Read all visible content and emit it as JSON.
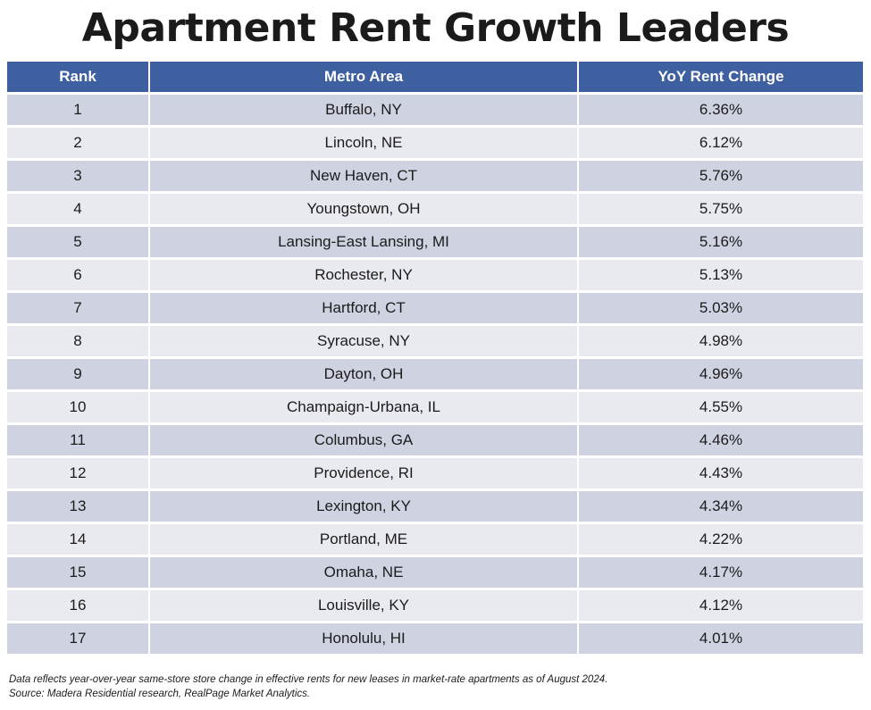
{
  "title": "Apartment Rent Growth Leaders",
  "table": {
    "headers": {
      "rank": "Rank",
      "metro": "Metro Area",
      "change": "YoY Rent Change"
    },
    "rows": [
      {
        "rank": "1",
        "metro": "Buffalo, NY",
        "change": "6.36%"
      },
      {
        "rank": "2",
        "metro": "Lincoln, NE",
        "change": "6.12%"
      },
      {
        "rank": "3",
        "metro": "New Haven, CT",
        "change": "5.76%"
      },
      {
        "rank": "4",
        "metro": "Youngstown, OH",
        "change": "5.75%"
      },
      {
        "rank": "5",
        "metro": "Lansing-East Lansing, MI",
        "change": "5.16%"
      },
      {
        "rank": "6",
        "metro": "Rochester, NY",
        "change": "5.13%"
      },
      {
        "rank": "7",
        "metro": "Hartford, CT",
        "change": "5.03%"
      },
      {
        "rank": "8",
        "metro": "Syracuse, NY",
        "change": "4.98%"
      },
      {
        "rank": "9",
        "metro": "Dayton, OH",
        "change": "4.96%"
      },
      {
        "rank": "10",
        "metro": "Champaign-Urbana, IL",
        "change": "4.55%"
      },
      {
        "rank": "11",
        "metro": "Columbus, GA",
        "change": "4.46%"
      },
      {
        "rank": "12",
        "metro": "Providence, RI",
        "change": "4.43%"
      },
      {
        "rank": "13",
        "metro": "Lexington, KY",
        "change": "4.34%"
      },
      {
        "rank": "14",
        "metro": "Portland, ME",
        "change": "4.22%"
      },
      {
        "rank": "15",
        "metro": "Omaha, NE",
        "change": "4.17%"
      },
      {
        "rank": "16",
        "metro": "Louisville, KY",
        "change": "4.12%"
      },
      {
        "rank": "17",
        "metro": "Honolulu, HI",
        "change": "4.01%"
      }
    ]
  },
  "footnote": {
    "line1": "Data reflects year-over-year same-store store change in effective rents for new leases in market-rate apartments as of August 2024.",
    "line2": "Source: Madera Residential research, RealPage Market Analytics."
  },
  "colors": {
    "header_bg": "#3e5fa0",
    "row_odd_bg": "#cfd3e1",
    "row_even_bg": "#e9eaf0"
  }
}
